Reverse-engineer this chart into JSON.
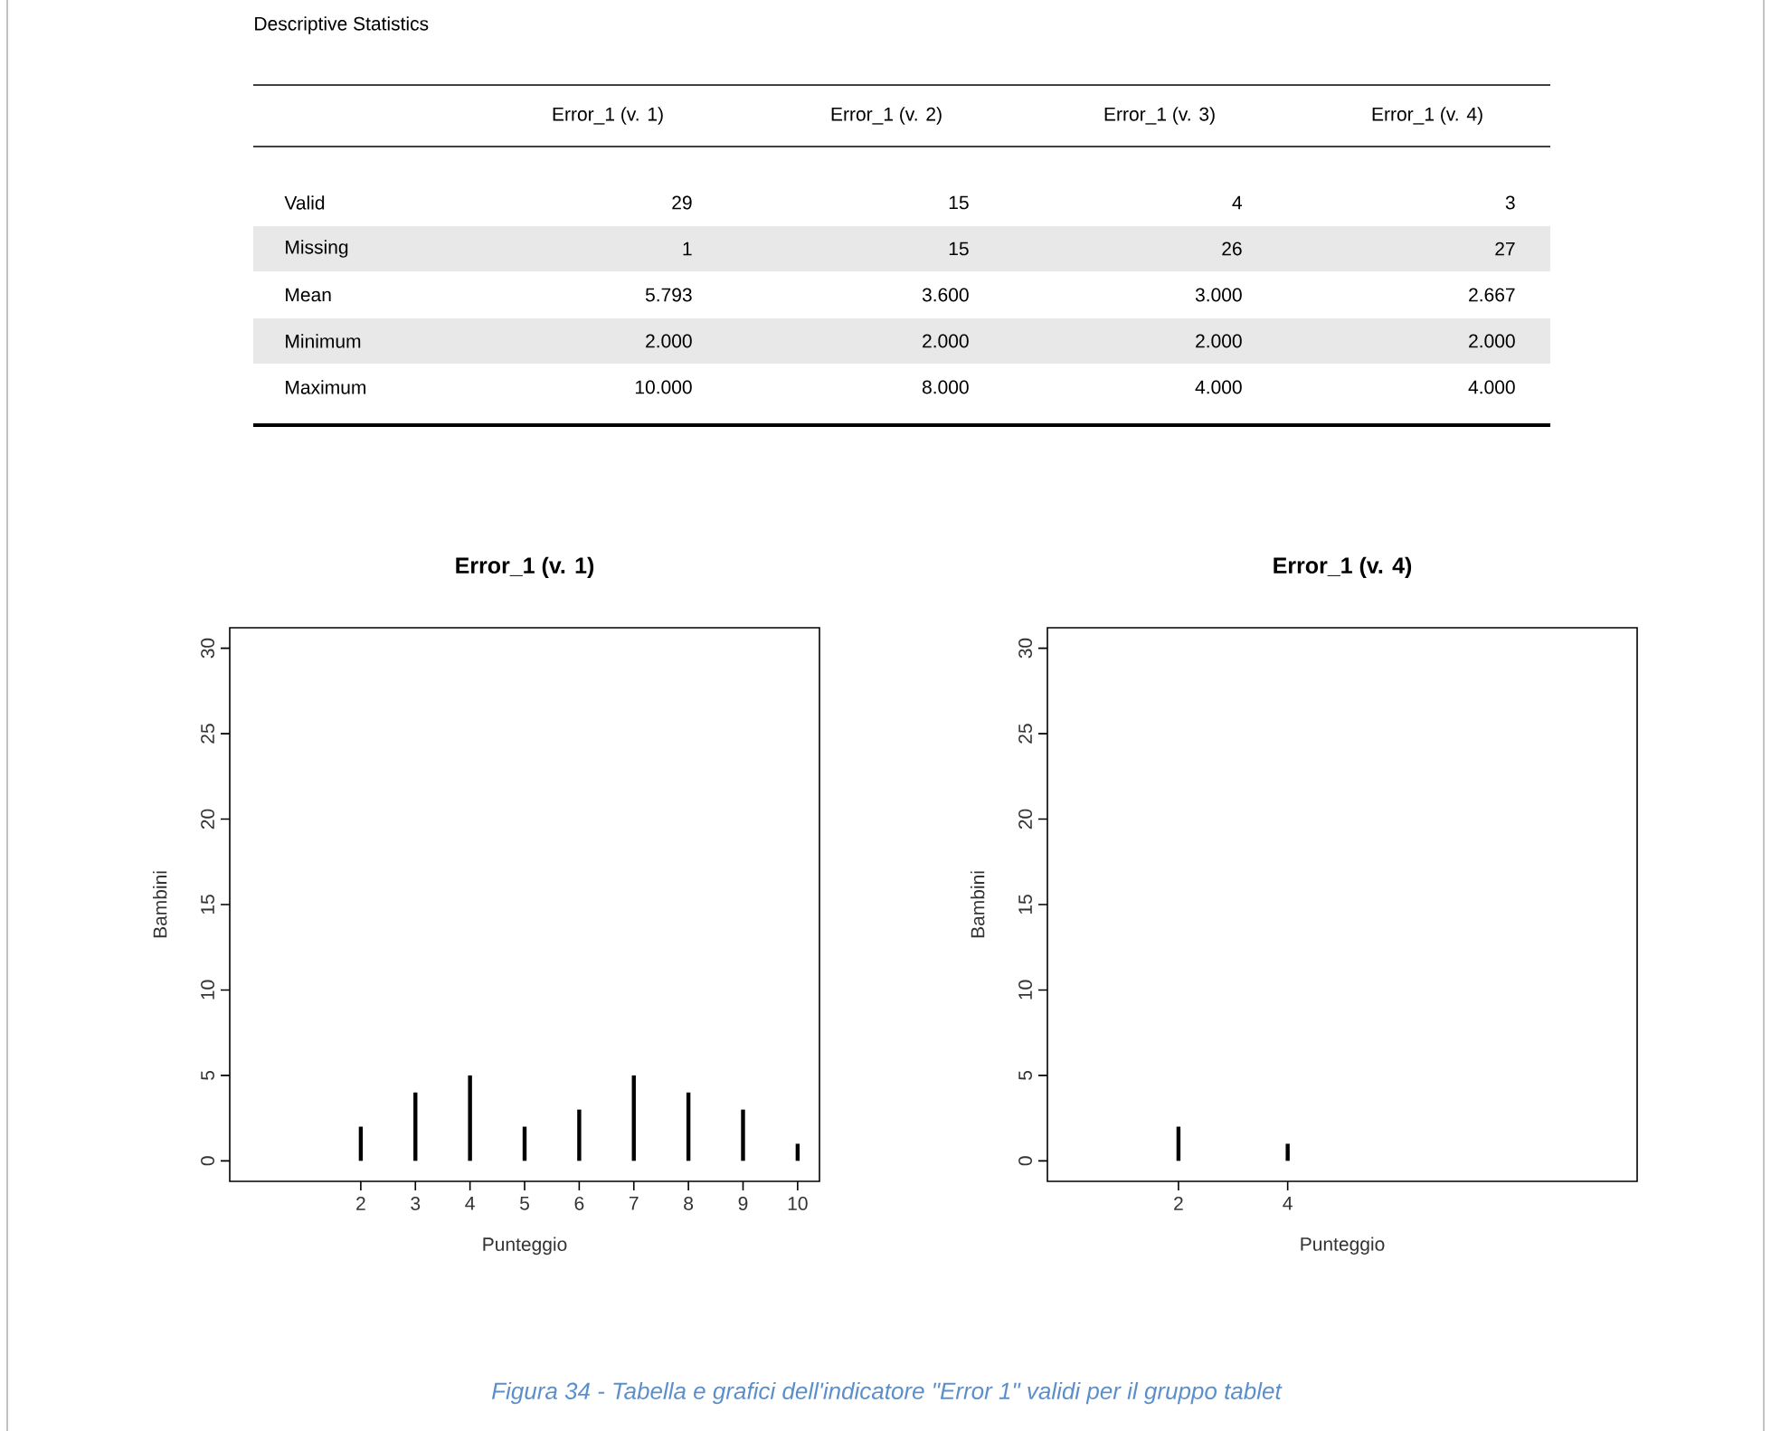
{
  "chart_data": [
    {
      "type": "other",
      "title": "Descriptive Statistics",
      "categories": [
        "Error_1 (v. 1)",
        "Error_1 (v. 2)",
        "Error_1 (v. 3)",
        "Error_1 (v. 4)"
      ],
      "y_categories": [
        "Valid",
        "Missing",
        "Mean",
        "Minimum",
        "Maximum"
      ],
      "cell_labels": [
        [
          "29",
          "15",
          "4",
          "3"
        ],
        [
          "1",
          "15",
          "26",
          "27"
        ],
        [
          "5.793",
          "3.600",
          "3.000",
          "2.667"
        ],
        [
          "2.000",
          "2.000",
          "2.000",
          "2.000"
        ],
        [
          "10.000",
          "8.000",
          "4.000",
          "4.000"
        ]
      ],
      "annotations": [
        "Figura 34 - Tabella e grafici dell'indicatore \"Error 1\" validi per il gruppo tablet"
      ]
    },
    {
      "type": "bar",
      "title": "Error_1 (v. 1)",
      "xlabel": "Punteggio",
      "ylabel": "Bambini",
      "x": [
        2,
        3,
        4,
        5,
        6,
        7,
        8,
        9,
        10
      ],
      "values": [
        2,
        4,
        5,
        2,
        3,
        5,
        4,
        3,
        1
      ],
      "color": "#000000",
      "xlim": [
        -0.4,
        10.4
      ],
      "ylim": [
        -1.2,
        31.2
      ],
      "xticks": [
        2,
        3,
        4,
        5,
        6,
        7,
        8,
        9,
        10
      ],
      "yticks": [
        0,
        5,
        10,
        15,
        20,
        25,
        30
      ],
      "grid": false
    },
    {
      "type": "bar",
      "title": "Error_1 (v. 4)",
      "xlabel": "Punteggio",
      "ylabel": "Bambini",
      "x": [
        2,
        4
      ],
      "values": [
        2,
        1
      ],
      "color": "#000000",
      "xlim": [
        -0.4,
        10.4
      ],
      "ylim": [
        -1.2,
        31.2
      ],
      "xticks": [
        2,
        4
      ],
      "yticks": [
        0,
        5,
        10,
        15,
        20,
        25,
        30
      ],
      "grid": false
    }
  ]
}
